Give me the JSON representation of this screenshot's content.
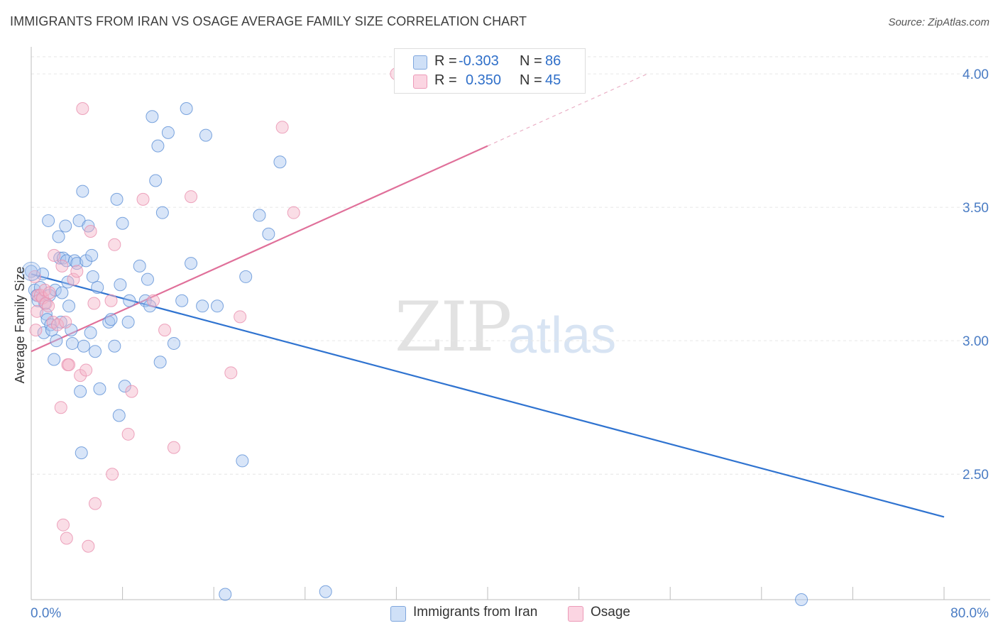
{
  "title": "IMMIGRANTS FROM IRAN VS OSAGE AVERAGE FAMILY SIZE CORRELATION CHART",
  "source": "Source: ZipAtlas.com",
  "watermark": {
    "zip": "ZIP",
    "atlas": "atlas"
  },
  "legend_top": [
    {
      "r_label": "R =",
      "r_value": "-0.303",
      "n_label": "N =",
      "n_value": "86",
      "color": "#a9c6ef"
    },
    {
      "r_label": "R =",
      "r_value": "0.350",
      "n_label": "N =",
      "n_value": "45",
      "color": "#f5b3c8"
    }
  ],
  "legend_bottom": [
    {
      "label": "Immigrants from Iran",
      "color": "#a9c6ef"
    },
    {
      "label": "Osage",
      "color": "#f5b3c8"
    }
  ],
  "chart_data": {
    "type": "scatter",
    "title": "IMMIGRANTS FROM IRAN VS OSAGE AVERAGE FAMILY SIZE CORRELATION CHART",
    "xlabel": "",
    "ylabel": "Average Family Size",
    "xlim": [
      0,
      80
    ],
    "ylim": [
      2.03,
      4.08
    ],
    "x_tick_labels": [
      "0.0%",
      "80.0%"
    ],
    "y_ticks": [
      2.5,
      3.0,
      3.5,
      4.0
    ],
    "y_tick_labels": [
      "2.50",
      "3.00",
      "3.50",
      "4.00"
    ],
    "grid": true,
    "series": [
      {
        "name": "Immigrants from Iran",
        "color": "#5b8fd6",
        "fill": "#a9c6ef",
        "trend": {
          "x0": 0,
          "y0": 3.25,
          "x1": 80,
          "y1": 2.34,
          "color": "#2f73d0"
        },
        "points": [
          [
            0.0,
            3.26
          ],
          [
            0.3,
            3.19
          ],
          [
            0.5,
            3.17
          ],
          [
            0.6,
            3.15
          ],
          [
            0.8,
            3.2
          ],
          [
            1.0,
            3.25
          ],
          [
            1.1,
            3.03
          ],
          [
            1.2,
            3.14
          ],
          [
            1.3,
            3.1
          ],
          [
            1.4,
            3.08
          ],
          [
            1.5,
            3.45
          ],
          [
            1.6,
            3.17
          ],
          [
            1.7,
            3.06
          ],
          [
            1.8,
            3.04
          ],
          [
            2.0,
            2.93
          ],
          [
            2.1,
            3.19
          ],
          [
            2.2,
            3.0
          ],
          [
            2.4,
            3.39
          ],
          [
            2.5,
            3.31
          ],
          [
            2.6,
            3.07
          ],
          [
            2.7,
            3.18
          ],
          [
            2.8,
            3.31
          ],
          [
            3.0,
            3.43
          ],
          [
            3.1,
            3.3
          ],
          [
            3.2,
            3.22
          ],
          [
            3.3,
            3.13
          ],
          [
            3.5,
            3.04
          ],
          [
            3.6,
            2.99
          ],
          [
            3.8,
            3.3
          ],
          [
            4.0,
            3.29
          ],
          [
            4.2,
            3.45
          ],
          [
            4.3,
            2.81
          ],
          [
            4.4,
            2.58
          ],
          [
            4.5,
            3.56
          ],
          [
            4.6,
            2.98
          ],
          [
            4.8,
            3.3
          ],
          [
            5.0,
            3.43
          ],
          [
            5.2,
            3.03
          ],
          [
            5.3,
            3.32
          ],
          [
            5.4,
            3.24
          ],
          [
            5.6,
            2.96
          ],
          [
            5.8,
            3.2
          ],
          [
            6.0,
            2.82
          ],
          [
            6.8,
            3.07
          ],
          [
            7.0,
            3.08
          ],
          [
            7.3,
            2.98
          ],
          [
            7.5,
            3.53
          ],
          [
            7.7,
            2.72
          ],
          [
            7.8,
            3.21
          ],
          [
            8.0,
            3.44
          ],
          [
            8.2,
            2.83
          ],
          [
            8.5,
            3.07
          ],
          [
            8.6,
            3.15
          ],
          [
            9.5,
            3.28
          ],
          [
            10.0,
            3.15
          ],
          [
            10.2,
            3.23
          ],
          [
            10.4,
            3.13
          ],
          [
            10.6,
            3.84
          ],
          [
            10.9,
            3.6
          ],
          [
            11.1,
            3.73
          ],
          [
            11.3,
            2.92
          ],
          [
            11.5,
            3.48
          ],
          [
            12.0,
            3.78
          ],
          [
            12.5,
            2.99
          ],
          [
            13.2,
            3.15
          ],
          [
            13.6,
            3.87
          ],
          [
            14.0,
            3.29
          ],
          [
            15.0,
            3.13
          ],
          [
            15.3,
            3.77
          ],
          [
            16.3,
            3.13
          ],
          [
            17.0,
            2.05
          ],
          [
            18.5,
            2.55
          ],
          [
            18.8,
            3.24
          ],
          [
            20.0,
            3.47
          ],
          [
            20.8,
            3.4
          ],
          [
            21.8,
            3.67
          ],
          [
            25.8,
            2.06
          ],
          [
            67.5,
            2.03
          ]
        ]
      },
      {
        "name": "Osage",
        "color": "#e98fae",
        "fill": "#f5b3c8",
        "trend": {
          "x0": 0,
          "y0": 2.96,
          "x1": 40,
          "y1": 3.73,
          "x_dash_end": 54,
          "y_dash_end": 4.0,
          "color": "#e0709a"
        },
        "points": [
          [
            0.3,
            3.24
          ],
          [
            0.4,
            3.04
          ],
          [
            0.5,
            3.11
          ],
          [
            0.6,
            3.17
          ],
          [
            0.8,
            3.17
          ],
          [
            1.0,
            3.16
          ],
          [
            1.2,
            3.19
          ],
          [
            1.3,
            3.14
          ],
          [
            1.5,
            3.13
          ],
          [
            1.6,
            3.18
          ],
          [
            1.9,
            3.07
          ],
          [
            2.0,
            3.32
          ],
          [
            2.3,
            3.06
          ],
          [
            2.6,
            2.75
          ],
          [
            2.7,
            3.28
          ],
          [
            2.8,
            2.31
          ],
          [
            3.0,
            3.07
          ],
          [
            3.1,
            2.26
          ],
          [
            3.2,
            2.91
          ],
          [
            3.3,
            2.91
          ],
          [
            3.7,
            3.23
          ],
          [
            4.0,
            3.26
          ],
          [
            4.3,
            2.87
          ],
          [
            4.5,
            3.87
          ],
          [
            4.8,
            2.89
          ],
          [
            5.0,
            2.23
          ],
          [
            5.2,
            3.41
          ],
          [
            5.5,
            3.14
          ],
          [
            5.6,
            2.39
          ],
          [
            7.0,
            3.15
          ],
          [
            7.1,
            2.5
          ],
          [
            7.3,
            3.36
          ],
          [
            8.5,
            2.65
          ],
          [
            8.8,
            2.81
          ],
          [
            9.8,
            3.53
          ],
          [
            10.7,
            3.15
          ],
          [
            11.7,
            3.04
          ],
          [
            12.5,
            2.6
          ],
          [
            14.0,
            3.54
          ],
          [
            17.5,
            2.88
          ],
          [
            18.3,
            3.09
          ],
          [
            22.0,
            3.8
          ],
          [
            23.0,
            3.48
          ],
          [
            32.0,
            4.0
          ]
        ]
      }
    ]
  }
}
